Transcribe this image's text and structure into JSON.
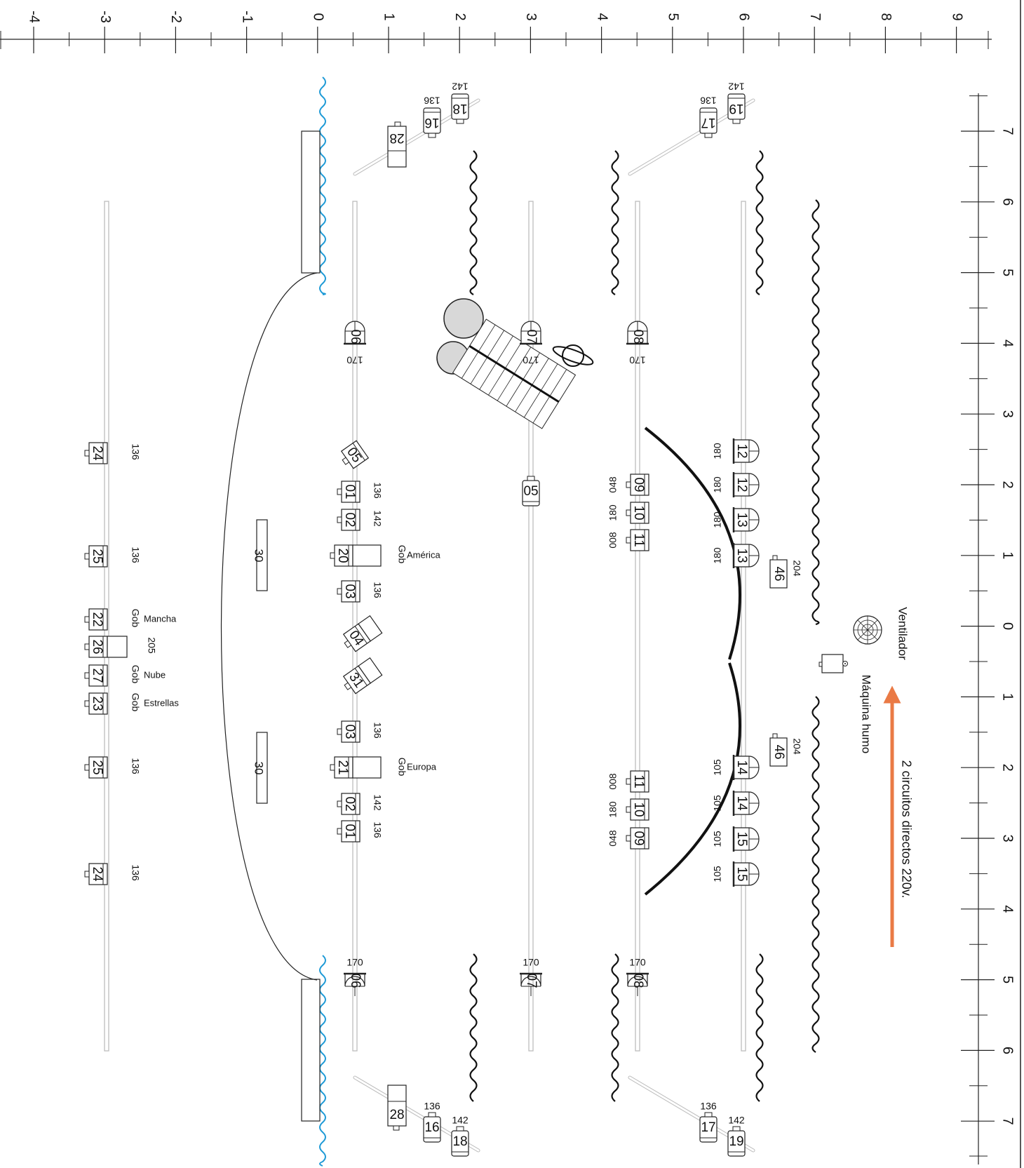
{
  "meta": {
    "accent_blue": "#1e9ad6",
    "arrow_orange": "#ea7a45",
    "line_gray": "#bdbdbd",
    "ink": "#111111"
  },
  "top_axis": {
    "labels": [
      "-4",
      "-3",
      "-2",
      "-1",
      "0",
      "1",
      "2",
      "3",
      "4",
      "5",
      "6",
      "7",
      "8",
      "9"
    ]
  },
  "right_axis": {
    "labels": [
      "7",
      "6",
      "5",
      "4",
      "3",
      "2",
      "1",
      "0",
      "1",
      "2",
      "3",
      "4",
      "5",
      "6",
      "7"
    ]
  },
  "notes": {
    "fan": "Ventilador",
    "smoke": "Máquina humo",
    "circuits": "2 circuitos directos 220v."
  },
  "stage": {
    "block_label": "30"
  },
  "fixtures": {
    "bar1": [
      {
        "num": "24",
        "gel": "136"
      },
      {
        "num": "25",
        "gel": "136"
      },
      {
        "num": "22",
        "gel": "Gob",
        "note": "Mancha"
      },
      {
        "num": "26",
        "gel": "205"
      },
      {
        "num": "27",
        "gel": "Gob",
        "note": "Nube"
      },
      {
        "num": "23",
        "gel": "Gob",
        "note": "Estrellas"
      },
      {
        "num": "25",
        "gel": "136"
      },
      {
        "num": "24",
        "gel": "136"
      }
    ],
    "bar2": [
      {
        "num": "06",
        "gel": "170"
      },
      {
        "num": "05"
      },
      {
        "num": "01",
        "gel": "136"
      },
      {
        "num": "02",
        "gel": "142"
      },
      {
        "num": "20",
        "gel": "Gob",
        "note": "América"
      },
      {
        "num": "03",
        "gel": "136"
      },
      {
        "num": "04"
      },
      {
        "num": "31"
      },
      {
        "num": "03",
        "gel": "136"
      },
      {
        "num": "21",
        "gel": "Gob",
        "note": "Europa"
      },
      {
        "num": "02",
        "gel": "142"
      },
      {
        "num": "01",
        "gel": "136"
      },
      {
        "num": "06",
        "gel": "170"
      }
    ],
    "bar3": [
      {
        "num": "07",
        "gel": "170"
      },
      {
        "num": "05"
      },
      {
        "num": "07",
        "gel": "170"
      }
    ],
    "bar4": [
      {
        "num": "08",
        "gel": "170"
      },
      {
        "num": "09",
        "gel": "048"
      },
      {
        "num": "10",
        "gel": "180"
      },
      {
        "num": "11",
        "gel": "008"
      },
      {
        "num": "11",
        "gel": "008"
      },
      {
        "num": "10",
        "gel": "180"
      },
      {
        "num": "09",
        "gel": "048"
      },
      {
        "num": "08",
        "gel": "170"
      }
    ],
    "bar5": [
      {
        "num": "12",
        "gel": "180"
      },
      {
        "num": "12",
        "gel": "180"
      },
      {
        "num": "13",
        "gel": "180"
      },
      {
        "num": "13",
        "gel": "180"
      },
      {
        "num": "14",
        "gel": "105"
      },
      {
        "num": "14",
        "gel": "105"
      },
      {
        "num": "15",
        "gel": "105"
      },
      {
        "num": "15",
        "gel": "105"
      }
    ],
    "side": [
      {
        "num": "46",
        "gel": "204"
      },
      {
        "num": "46",
        "gel": "204"
      },
      {
        "num": "16",
        "gel": "136"
      },
      {
        "num": "18",
        "gel": "142"
      },
      {
        "num": "17",
        "gel": "136"
      },
      {
        "num": "19",
        "gel": "142"
      },
      {
        "num": "28"
      }
    ]
  }
}
